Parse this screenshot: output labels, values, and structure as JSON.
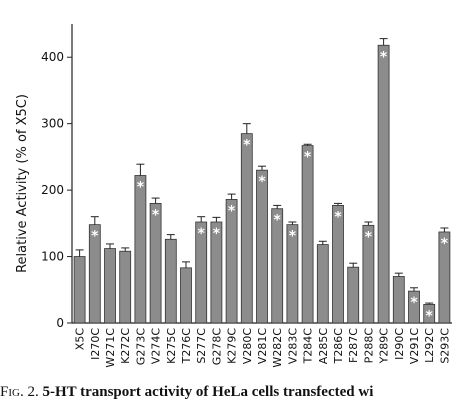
{
  "chart_data": {
    "type": "bar",
    "ylabel": "Relative Activity (% of X5C)",
    "categories": [
      "X5C",
      "I270C",
      "W271C",
      "K272C",
      "G273C",
      "V274C",
      "K275C",
      "T276C",
      "S277C",
      "G278C",
      "K279C",
      "V280C",
      "V281C",
      "W282C",
      "V283C",
      "T284C",
      "A285C",
      "T286C",
      "F287C",
      "P288C",
      "Y289C",
      "I290C",
      "V291C",
      "L292C",
      "S293C"
    ],
    "values": [
      100,
      148,
      112,
      108,
      222,
      180,
      126,
      83,
      152,
      152,
      186,
      285,
      230,
      172,
      148,
      267,
      118,
      177,
      84,
      147,
      418,
      70,
      48,
      28,
      137
    ],
    "errors": [
      10,
      12,
      7,
      5,
      17,
      8,
      7,
      9,
      8,
      7,
      8,
      15,
      6,
      5,
      4,
      2,
      5,
      3,
      6,
      5,
      10,
      5,
      5,
      2,
      6
    ],
    "markers": [
      null,
      "*",
      null,
      null,
      "*",
      "*",
      null,
      null,
      "*",
      "*",
      "*",
      "*",
      "*",
      "*",
      "*",
      "*",
      null,
      "*",
      null,
      "*",
      "*",
      null,
      "*",
      "*",
      "*"
    ],
    "color": "#8c8c8c",
    "ylim": [
      0,
      450
    ],
    "yticks": [
      0,
      100,
      200,
      300,
      400
    ]
  },
  "caption": {
    "label": "Fig. 2.",
    "text": "5-HT transport activity of HeLa cells transfected wi"
  }
}
